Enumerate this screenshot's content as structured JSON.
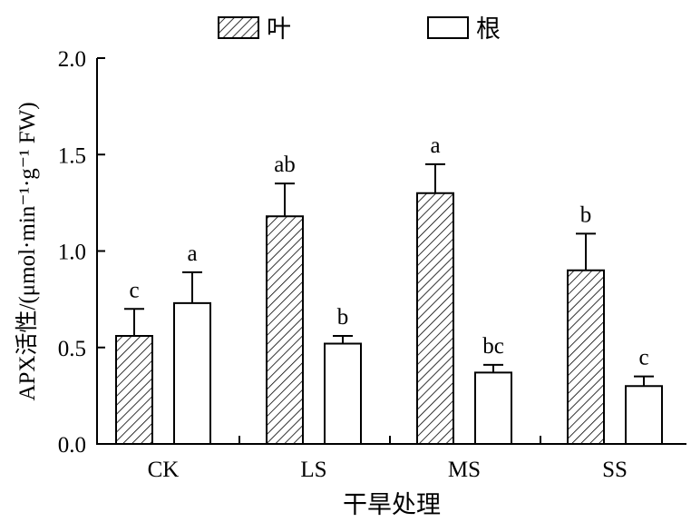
{
  "chart_data": {
    "type": "bar",
    "categories": [
      "CK",
      "LS",
      "MS",
      "SS"
    ],
    "series": [
      {
        "name": "叶",
        "pattern": "hatched",
        "values": [
          0.56,
          1.18,
          1.3,
          0.9
        ],
        "errors": [
          0.14,
          0.17,
          0.15,
          0.19
        ],
        "letters": [
          "c",
          "ab",
          "a",
          "b"
        ]
      },
      {
        "name": "根",
        "pattern": "empty",
        "values": [
          0.73,
          0.52,
          0.37,
          0.3
        ],
        "errors": [
          0.16,
          0.04,
          0.04,
          0.05
        ],
        "letters": [
          "a",
          "b",
          "bc",
          "c"
        ]
      }
    ],
    "xlabel": "干旱处理",
    "ylabel": "APX活性/(μmol·min⁻¹·g⁻¹ FW)",
    "ylim": [
      0,
      2.0
    ],
    "yticks": [
      "0.0",
      "0.5",
      "1.0",
      "1.5",
      "2.0"
    ],
    "legend_position": "top-center",
    "grid": false,
    "colors": {
      "stroke": "#000000",
      "fill_empty": "#ffffff"
    }
  }
}
